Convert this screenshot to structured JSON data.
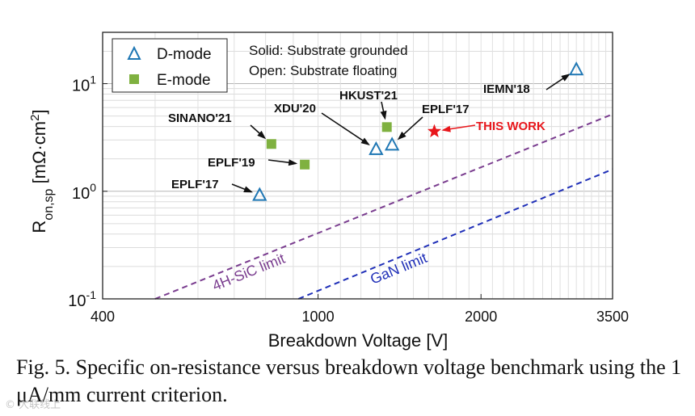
{
  "chart_data": {
    "type": "scatter",
    "xscale": "log",
    "yscale": "log",
    "xlim": [
      400,
      3500
    ],
    "ylim": [
      0.1,
      30
    ],
    "xticks": [
      {
        "value": 400,
        "label": "400"
      },
      {
        "value": 1000,
        "label": "1000"
      },
      {
        "value": 2000,
        "label": "2000"
      },
      {
        "value": 3500,
        "label": "3500"
      }
    ],
    "yticks": [
      {
        "value": 0.1,
        "base": "10",
        "exp": "-1"
      },
      {
        "value": 1,
        "base": "10",
        "exp": "0"
      },
      {
        "value": 10,
        "base": "10",
        "exp": "1"
      }
    ],
    "xlabel": "Breakdown Voltage [V]",
    "ylabel": {
      "main": "R",
      "sub": "on,sp",
      "unit": " [mΩ·cm",
      "sup": "2",
      "close": "]"
    },
    "grid": true,
    "legend": {
      "position": "top-left",
      "entries": [
        {
          "label": "D-mode",
          "marker": "triangle-open",
          "color": "#1f77b4"
        },
        {
          "label": "E-mode",
          "marker": "square-filled",
          "color": "#7fb140"
        }
      ]
    },
    "notes": [
      "Solid: Substrate grounded",
      "Open: Substrate floating"
    ],
    "points": [
      {
        "label": "EPLF'17",
        "x": 780,
        "y": 0.92,
        "series": "D-mode",
        "filled": false
      },
      {
        "label": "SINANO'21",
        "x": 820,
        "y": 2.75,
        "series": "E-mode",
        "filled": true
      },
      {
        "label": "EPLF'19",
        "x": 945,
        "y": 1.77,
        "series": "E-mode",
        "filled": true
      },
      {
        "label": "XDU'20",
        "x": 1280,
        "y": 2.45,
        "series": "D-mode",
        "filled": false
      },
      {
        "label": "HKUST'21",
        "x": 1340,
        "y": 3.95,
        "series": "E-mode",
        "filled": true
      },
      {
        "label": "EPLF'17",
        "x": 1370,
        "y": 2.7,
        "series": "D-mode",
        "filled": false
      },
      {
        "label": "IEMN'18",
        "x": 3000,
        "y": 13.5,
        "series": "D-mode",
        "filled": false
      },
      {
        "label": "THIS WORK",
        "x": 1640,
        "y": 3.6,
        "series": "this-work",
        "filled": true,
        "color": "#e8161b"
      }
    ],
    "limit_lines": [
      {
        "label": "4H-SiC limit",
        "color": "#7a3d8f",
        "x": [
          500,
          3500
        ],
        "y": [
          0.1,
          5.2
        ]
      },
      {
        "label": "GaN limit",
        "color": "#1f2fb8",
        "x": [
          920,
          3500
        ],
        "y": [
          0.1,
          1.6
        ]
      }
    ]
  },
  "caption": "Fig. 5. Specific on-resistance versus breakdown voltage benchmark using the 1 μA/mm current criterion.",
  "watermark": "© 大联线上"
}
